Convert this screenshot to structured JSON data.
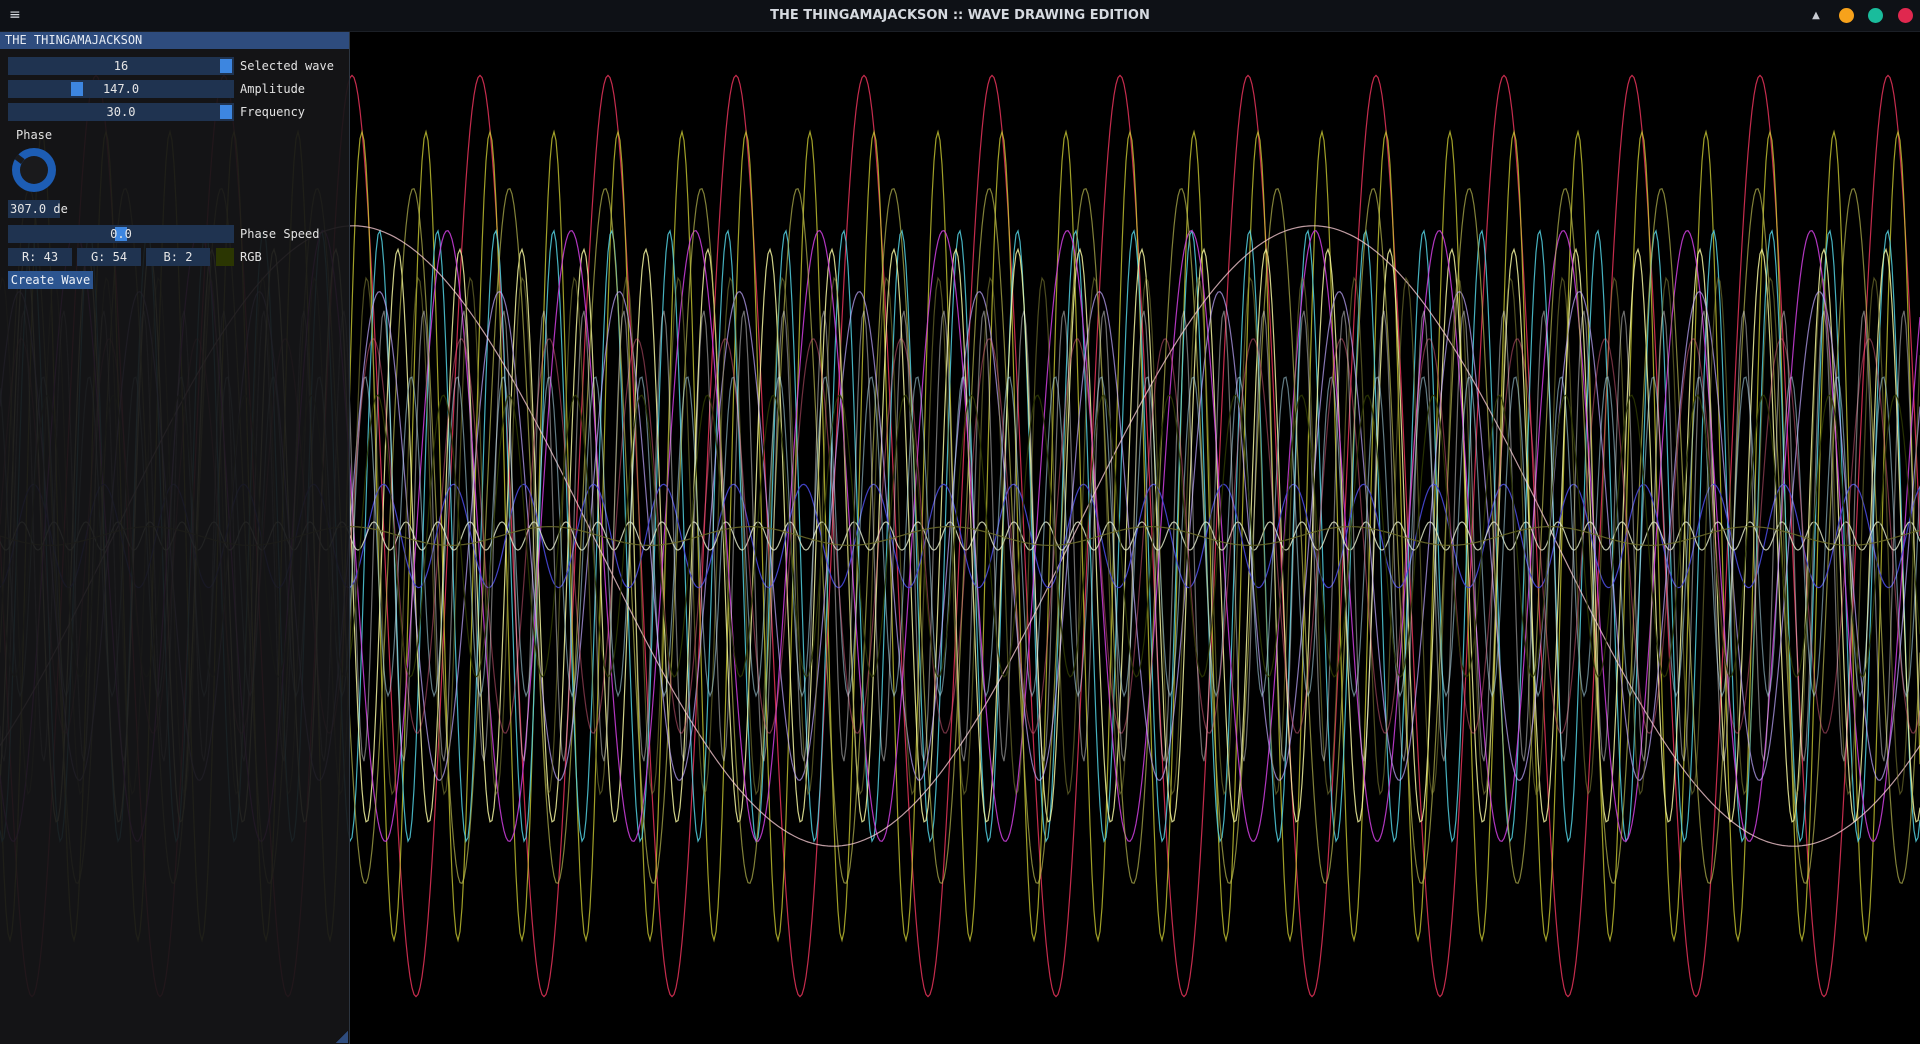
{
  "window": {
    "title": "THE THINGAMAJACKSON :: WAVE DRAWING EDITION",
    "menu_icon": "hamburger-menu-icon",
    "controls": [
      {
        "name": "minimize-button",
        "color": "#f7a21b"
      },
      {
        "name": "maximize-button",
        "color": "#1abc9c"
      },
      {
        "name": "close-button",
        "color": "#e0284f"
      }
    ],
    "caret_icon": "chevron-up-icon"
  },
  "panel": {
    "header": "THE THINGAMAJACKSON",
    "selected_wave": {
      "value": "16",
      "label": "Selected wave",
      "level": 1.0
    },
    "amplitude": {
      "value": "147.0",
      "label": "Amplitude",
      "level": 0.29
    },
    "frequency": {
      "value": "30.0",
      "label": "Frequency",
      "level": 1.0
    },
    "phase": {
      "label": "Phase",
      "value": "307.0 de",
      "degrees": 307
    },
    "phase_speed": {
      "value": "0.0",
      "label": "Phase Speed",
      "level": 0.5
    },
    "rgb": {
      "r": "R: 43",
      "g": "G: 54",
      "b": "B:  2",
      "label": "RGB",
      "swatch": "#2b3602"
    },
    "create_button": "Create Wave"
  },
  "waves": [
    {
      "color": "#e8345a",
      "amp": 0.98,
      "period": 128,
      "phase": 0.0,
      "opacity": 0.85
    },
    {
      "color": "#c8c832",
      "amp": 0.86,
      "period": 64,
      "phase": 0.6,
      "opacity": 0.8
    },
    {
      "color": "#52d0e0",
      "amp": 0.65,
      "period": 58,
      "phase": 1.3,
      "opacity": 0.85
    },
    {
      "color": "#f6f7a0",
      "amp": 0.61,
      "period": 62,
      "phase": 2.1,
      "opacity": 0.85
    },
    {
      "color": "#d040e0",
      "amp": 0.65,
      "period": 124,
      "phase": 0.9,
      "opacity": 0.85
    },
    {
      "color": "#b8b850",
      "amp": 0.74,
      "period": 96,
      "phase": 2.8,
      "opacity": 0.7
    },
    {
      "color": "#c0a8ff",
      "amp": 0.52,
      "period": 120,
      "phase": 3.7,
      "opacity": 0.7
    },
    {
      "color": "#ffd0d8",
      "amp": 0.66,
      "period": 960,
      "phase": 2.4,
      "opacity": 0.75
    },
    {
      "color": "#4848d8",
      "amp": 0.11,
      "period": 70,
      "phase": 1.7,
      "opacity": 0.9
    },
    {
      "color": "#e8f0d0",
      "amp": 0.03,
      "period": 32,
      "phase": 0.4,
      "opacity": 0.8
    },
    {
      "color": "#8a8a38",
      "amp": 0.55,
      "period": 52,
      "phase": 4.4,
      "opacity": 0.55
    },
    {
      "color": "#b0e0f0",
      "amp": 0.34,
      "period": 46,
      "phase": 5.1,
      "opacity": 0.55
    },
    {
      "color": "#e06080",
      "amp": 0.42,
      "period": 88,
      "phase": 3.2,
      "opacity": 0.5
    },
    {
      "color": "#f0f0f0",
      "amp": 0.48,
      "period": 40,
      "phase": 1.0,
      "opacity": 0.45
    },
    {
      "color": "#6a6a2a",
      "amp": 0.02,
      "period": 200,
      "phase": 0.0,
      "opacity": 0.9
    },
    {
      "color": "#2b3602",
      "amp": 0.3,
      "period": 66,
      "phase": 0.2,
      "opacity": 0.9
    }
  ]
}
